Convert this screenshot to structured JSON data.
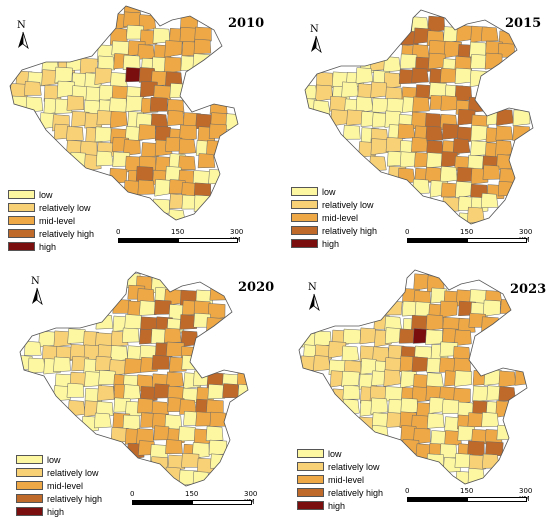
{
  "colors": {
    "low": "#fdf7a1",
    "relatively_low": "#f8d176",
    "mid_level": "#eea845",
    "relatively_high": "#bf6a2a",
    "high": "#7a0d0d",
    "border": "#6a6a6a"
  },
  "legend": {
    "items": [
      {
        "key": "low",
        "label": "low"
      },
      {
        "key": "relatively_low",
        "label": "relatively low"
      },
      {
        "key": "mid_level",
        "label": "mid-level"
      },
      {
        "key": "relatively_high",
        "label": "relatively high"
      },
      {
        "key": "high",
        "label": "high"
      }
    ]
  },
  "north_arrow": {
    "label": "N"
  },
  "scale_bar": {
    "ticks": [
      "0",
      "150",
      "300"
    ],
    "unit": "KM"
  },
  "panels": [
    {
      "year": "2010"
    },
    {
      "year": "2015"
    },
    {
      "year": "2020"
    },
    {
      "year": "2023"
    }
  ]
}
